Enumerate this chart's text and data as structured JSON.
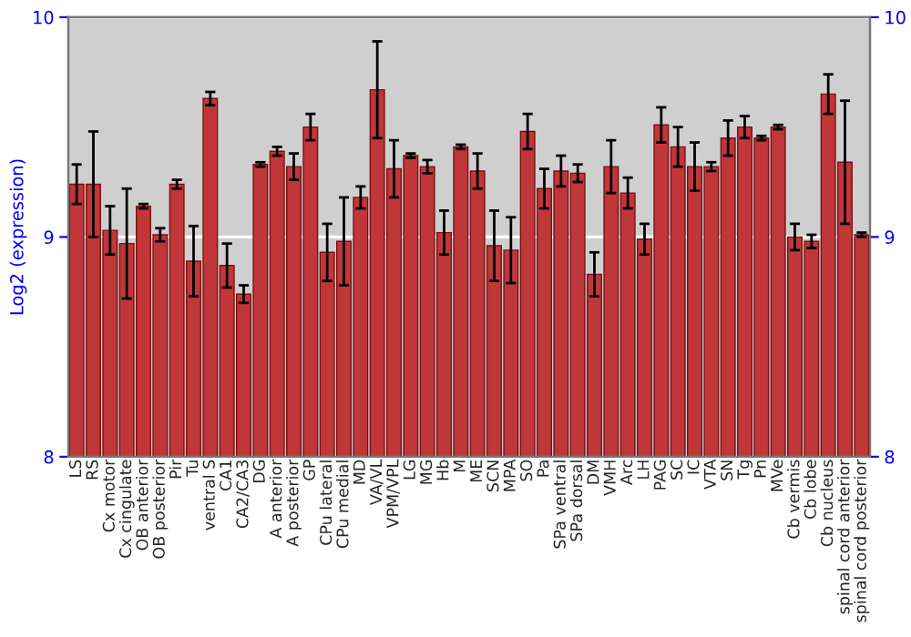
{
  "chart_data": {
    "type": "bar",
    "ylabel": "Log2 (expression)",
    "categories": [
      "LS",
      "RS",
      "Cx motor",
      "Cx cingulate",
      "OB anterior",
      "OB posterior",
      "Pir",
      "Tu",
      "ventral S",
      "CA1",
      "CA2/CA3",
      "DG",
      "A anterior",
      "A posterior",
      "GP",
      "CPu lateral",
      "CPu medial",
      "MD",
      "VA/VL",
      "VPM/VPL",
      "LG",
      "MG",
      "Hb",
      "M",
      "ME",
      "SCN",
      "MPA",
      "SO",
      "Pa",
      "SPa ventral",
      "SPa dorsal",
      "DM",
      "VMH",
      "Arc",
      "LH",
      "PAG",
      "SC",
      "IC",
      "VTA",
      "SN",
      "Tg",
      "Pn",
      "MVe",
      "Cb vermis",
      "Cb lobe",
      "Cb nucleus",
      "spinal cord anterior",
      "spinal cord posterior"
    ],
    "values": [
      9.24,
      9.24,
      9.03,
      8.97,
      9.14,
      9.01,
      9.24,
      8.89,
      9.63,
      8.87,
      8.74,
      9.33,
      9.39,
      9.32,
      9.5,
      8.93,
      8.98,
      9.18,
      9.67,
      9.31,
      9.37,
      9.32,
      9.02,
      9.41,
      9.3,
      8.96,
      8.94,
      9.48,
      9.22,
      9.3,
      9.29,
      8.83,
      9.32,
      9.2,
      8.99,
      9.51,
      9.41,
      9.32,
      9.32,
      9.45,
      9.5,
      9.45,
      9.5,
      9.0,
      8.98,
      9.65,
      9.34,
      9.01
    ],
    "errors": [
      0.09,
      0.24,
      0.11,
      0.25,
      0.01,
      0.03,
      0.02,
      0.16,
      0.03,
      0.1,
      0.04,
      0.01,
      0.02,
      0.06,
      0.06,
      0.13,
      0.2,
      0.05,
      0.22,
      0.13,
      0.01,
      0.03,
      0.1,
      0.01,
      0.08,
      0.16,
      0.15,
      0.08,
      0.09,
      0.07,
      0.04,
      0.1,
      0.12,
      0.07,
      0.07,
      0.08,
      0.09,
      0.11,
      0.02,
      0.08,
      0.05,
      0.01,
      0.01,
      0.06,
      0.03,
      0.09,
      0.28,
      0.01
    ],
    "color": "#c0373a",
    "ylim": [
      8,
      10
    ],
    "yticks": [
      8,
      9,
      10
    ],
    "y2lim": [
      8,
      10
    ],
    "y2ticks": [
      8,
      9,
      10
    ],
    "grid": "y",
    "legend": false
  }
}
